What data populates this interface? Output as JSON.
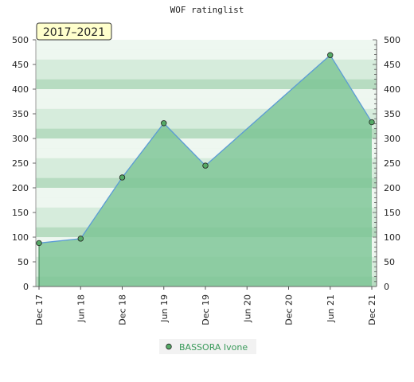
{
  "chart_data": {
    "type": "area",
    "title": "WOF ratinglist",
    "period_label": "2017–2021",
    "x": [
      "Dec 17",
      "Jun 18",
      "Dec 18",
      "Jun 19",
      "Dec 19",
      "Jun 20",
      "Dec 20",
      "Jun 21",
      "Dec 21"
    ],
    "series": [
      {
        "name": "BASSORA Ivone",
        "points": [
          {
            "x": "Dec 17",
            "y": 88
          },
          {
            "x": "Jun 18",
            "y": 97
          },
          {
            "x": "Dec 18",
            "y": 221
          },
          {
            "x": "Jun 19",
            "y": 331
          },
          {
            "x": "Dec 19",
            "y": 245
          },
          {
            "x": "Jun 21",
            "y": 469
          },
          {
            "x": "Dec 21",
            "y": 333
          }
        ]
      }
    ],
    "ylim": [
      0,
      500
    ],
    "yticks": [
      0,
      50,
      100,
      150,
      200,
      250,
      300,
      350,
      400,
      450,
      500
    ],
    "legend_position": "bottom-center",
    "grid": true,
    "colors": {
      "fill": "#7cc595",
      "line": "#5b9bd5",
      "marker": "#55aa66",
      "badge_bg": "#ffffcc",
      "band_dark": "#b7dcc1",
      "band_mid": "#d6ecdc",
      "band_light": "#eef7f0"
    }
  }
}
